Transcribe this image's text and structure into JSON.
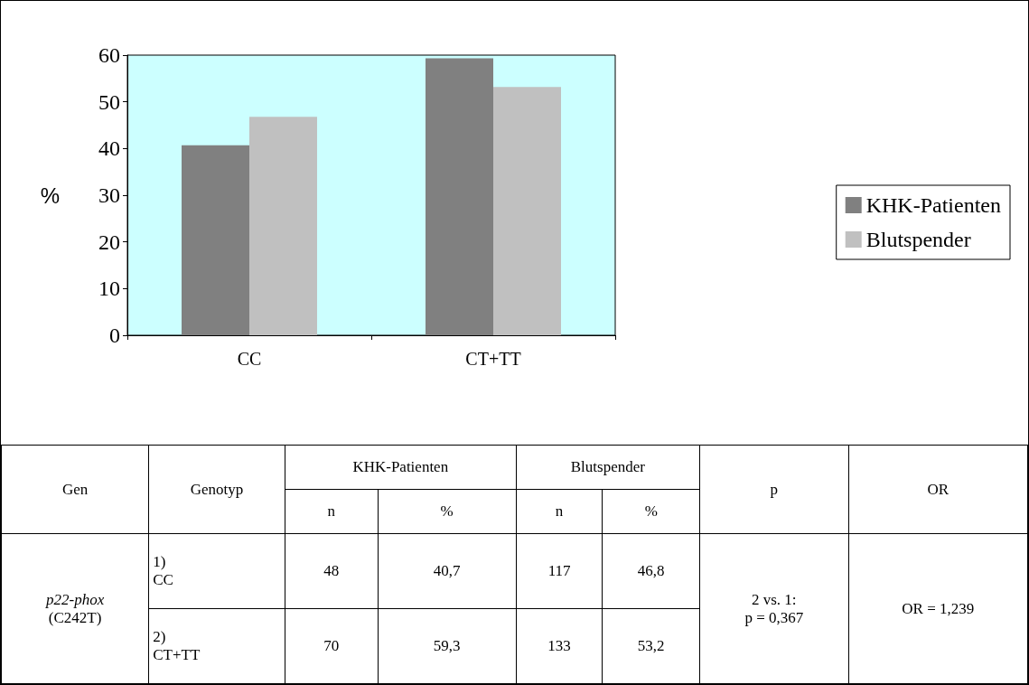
{
  "chart_data": {
    "type": "bar",
    "categories": [
      "CC",
      "CT+TT"
    ],
    "series": [
      {
        "name": "KHK-Patienten",
        "color": "#808080",
        "values": [
          40.7,
          59.3
        ]
      },
      {
        "name": "Blutspender",
        "color": "#c0c0c0",
        "values": [
          46.8,
          53.2
        ]
      }
    ],
    "ylabel": "%",
    "ylim": [
      0,
      60
    ],
    "yticks": [
      0,
      10,
      20,
      30,
      40,
      50,
      60
    ],
    "grid": false,
    "legend": "right",
    "annotations": [
      "Gen",
      "Genotyp",
      "n",
      "%",
      "p",
      "OR",
      "p22-phox",
      "(C242T)",
      "1)",
      "2)",
      "48",
      "70",
      "117",
      "133",
      "2 vs. 1:",
      "p = 0,367",
      "OR = 1,239",
      "40,7",
      "59,3",
      "46,8",
      "53,2"
    ]
  }
}
